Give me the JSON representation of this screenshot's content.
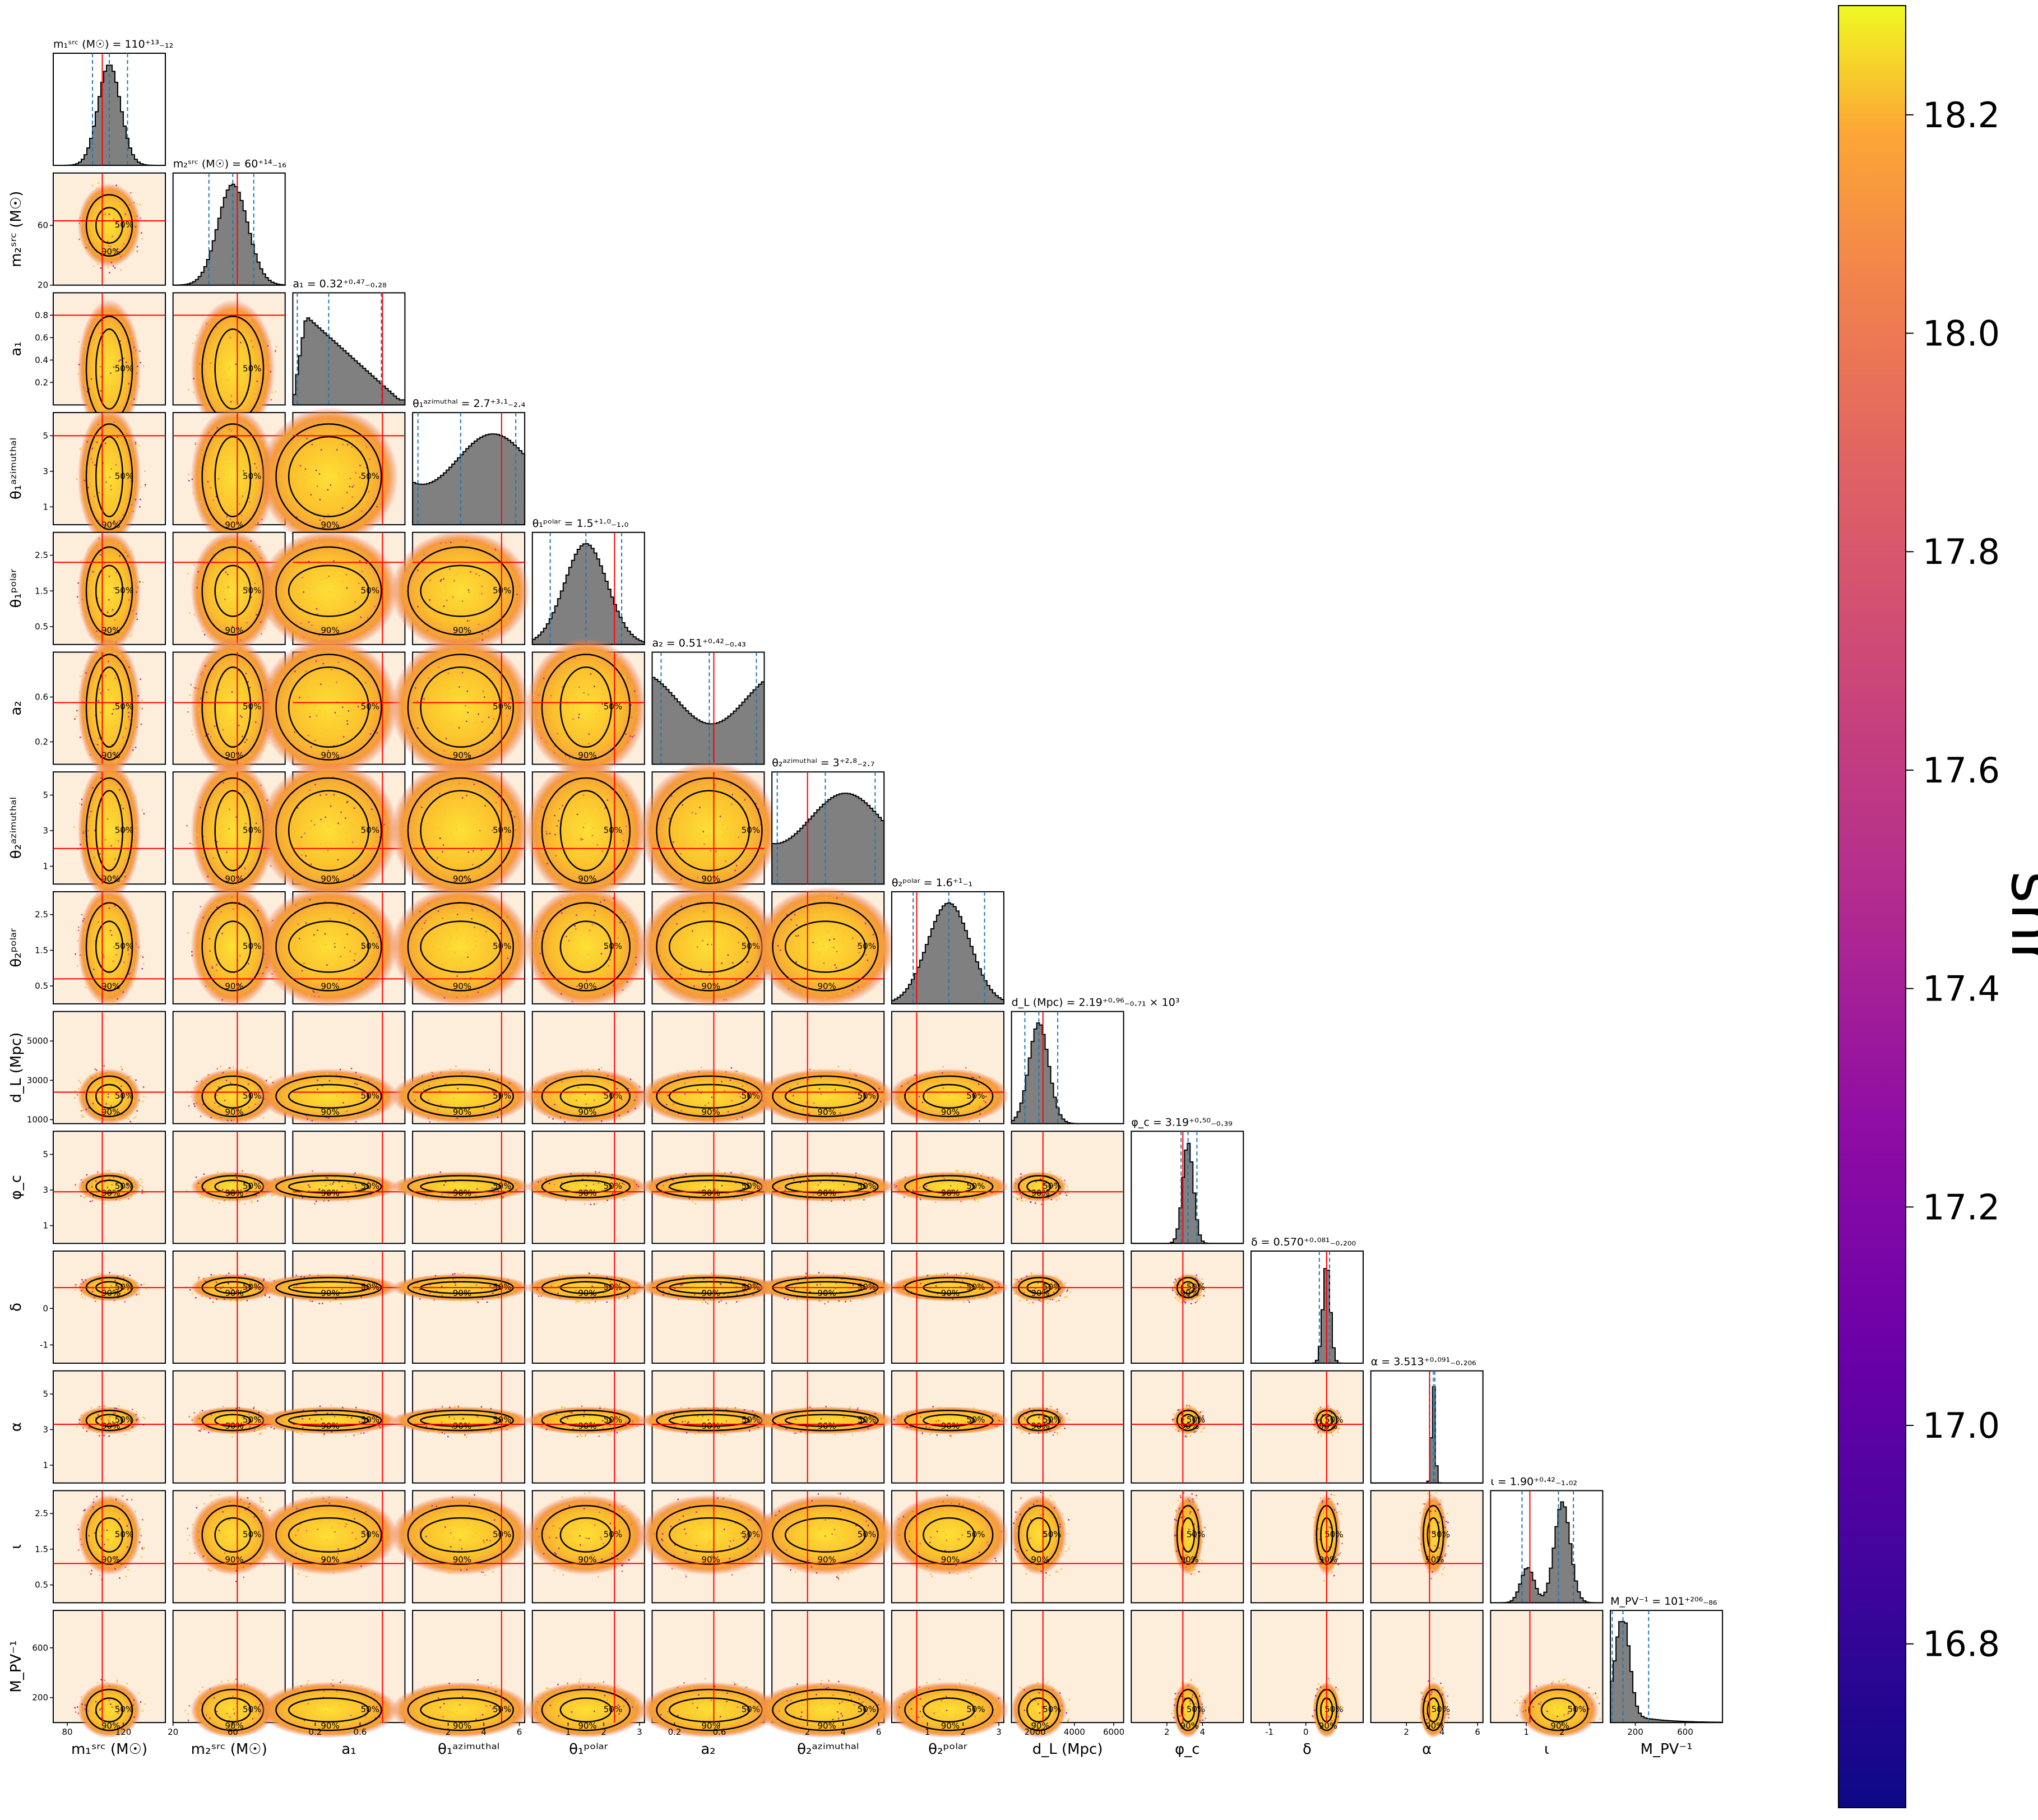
{
  "chart_data": {
    "type": "corner",
    "params": [
      {
        "key": "m1",
        "label": "m₁ˢʳᶜ (M☉)",
        "range": [
          70,
          150
        ],
        "ticks": [
          80,
          120
        ],
        "truth": 105,
        "median": 110,
        "title": "m₁ˢʳᶜ (M☉) = 110⁺¹³₋₁₂",
        "lo": 98,
        "hi": 123,
        "sd": 8
      },
      {
        "key": "m2",
        "label": "m₂ˢʳᶜ (M☉)",
        "range": [
          20,
          95
        ],
        "ticks": [
          20,
          60
        ],
        "truth": 63,
        "median": 60,
        "title": "m₂ˢʳᶜ (M☉) = 60⁺¹⁴₋₁₆",
        "lo": 44,
        "hi": 74,
        "sd": 10
      },
      {
        "key": "a1",
        "label": "a₁",
        "range": [
          0,
          1
        ],
        "ticks": [
          0.2,
          0.4,
          0.6,
          0.8
        ],
        "truth": 0.8,
        "median": 0.32,
        "title": "a₁ = 0.32⁺⁰·⁴⁷₋₀.₂₈",
        "lo": 0.04,
        "hi": 0.79,
        "sd": 0.3
      },
      {
        "key": "t1az",
        "label": "θ₁ᵃᶻⁱᵐᵘᵗʰᵃˡ",
        "range": [
          0,
          6.3
        ],
        "ticks": [
          1,
          3,
          5
        ],
        "truth": 5.0,
        "median": 2.7,
        "title": "θ₁ᵃᶻⁱᵐᵘᵗʰᵃˡ = 2.7⁺³·¹₋₂.₄",
        "lo": 0.3,
        "hi": 5.8,
        "sd": 2
      },
      {
        "key": "t1p",
        "label": "θ₁ᵖᵒˡᵃʳ",
        "range": [
          0,
          3.14
        ],
        "ticks": [
          0.5,
          1.5,
          2.5
        ],
        "truth": 2.3,
        "median": 1.5,
        "title": "θ₁ᵖᵒˡᵃʳ = 1.5⁺¹·⁰₋₁.₀",
        "lo": 0.5,
        "hi": 2.5,
        "sd": 0.6
      },
      {
        "key": "a2",
        "label": "a₂",
        "range": [
          0,
          1
        ],
        "ticks": [
          0.2,
          0.6
        ],
        "truth": 0.55,
        "median": 0.51,
        "title": "a₂ = 0.51⁺⁰·⁴²₋₀.₄₃",
        "lo": 0.08,
        "hi": 0.93,
        "sd": 0.3
      },
      {
        "key": "t2az",
        "label": "θ₂ᵃᶻⁱᵐᵘᵗʰᵃˡ",
        "range": [
          0,
          6.3
        ],
        "ticks": [
          1,
          3,
          5
        ],
        "truth": 2.0,
        "median": 3.0,
        "title": "θ₂ᵃᶻⁱᵐᵘᵗʰᵃˡ = 3⁺²·⁸₋₂.₇",
        "lo": 0.3,
        "hi": 5.8,
        "sd": 2
      },
      {
        "key": "t2p",
        "label": "θ₂ᵖᵒˡᵃʳ",
        "range": [
          0,
          3.14
        ],
        "ticks": [
          0.5,
          1.5,
          2.5
        ],
        "truth": 0.7,
        "median": 1.6,
        "title": "θ₂ᵖᵒˡᵃʳ = 1.6⁺¹₋₁",
        "lo": 0.6,
        "hi": 2.6,
        "sd": 0.6
      },
      {
        "key": "dL",
        "label": "d_L (Mpc)",
        "range": [
          800,
          6500
        ],
        "ticks": [
          1000,
          3000,
          5000
        ],
        "truth": 2400,
        "median": 2190,
        "title": "d_L (Mpc) = 2.19⁺⁰·⁹⁶₋₀.₇₁ × 10³",
        "lo": 1480,
        "hi": 3150,
        "sd": 500
      },
      {
        "key": "phic",
        "label": "φ_c",
        "range": [
          0,
          6.3
        ],
        "ticks": [
          1,
          3,
          5
        ],
        "truth": 2.9,
        "median": 3.19,
        "title": "φ_c = 3.19⁺⁰·⁵⁰₋₀.₃₉",
        "lo": 2.8,
        "hi": 3.69,
        "sd": 0.3
      },
      {
        "key": "delta",
        "label": "δ",
        "range": [
          -1.5,
          1.57
        ],
        "ticks": [
          -1,
          0
        ],
        "truth": 0.57,
        "median": 0.57,
        "title": "δ = 0.570⁺⁰·⁰⁸¹₋₀.₂₀₀",
        "lo": 0.37,
        "hi": 0.65,
        "sd": 0.1
      },
      {
        "key": "alpha",
        "label": "α",
        "range": [
          0,
          6.3
        ],
        "ticks": [
          1,
          3,
          5
        ],
        "truth": 3.3,
        "median": 3.513,
        "title": "α = 3.513⁺⁰·⁰⁹¹₋₀.₂₀₆",
        "lo": 3.31,
        "hi": 3.6,
        "sd": 0.1
      },
      {
        "key": "iota",
        "label": "ι",
        "range": [
          0,
          3.14
        ],
        "ticks": [
          0.5,
          1.5,
          2.5
        ],
        "truth": 1.1,
        "median": 1.9,
        "title": "ι = 1.90⁺⁰·⁴²₋₁.₀₂",
        "lo": 0.88,
        "hi": 2.32,
        "sd": 0.4
      },
      {
        "key": "mpv",
        "label": "M_PV⁻¹",
        "range": [
          0,
          900
        ],
        "ticks": [
          200,
          600
        ],
        "truth": null,
        "median": 101,
        "title": "M_PV⁻¹ = 101⁺²⁰⁶₋₈₆",
        "lo": 15,
        "hi": 307,
        "sd": 80
      }
    ],
    "bottom_ticks": {
      "m1": [
        80,
        120
      ],
      "m2": [
        20,
        60
      ],
      "a1": [
        0.2,
        0.6
      ],
      "t1az": [
        2,
        4,
        6
      ],
      "t1p": [
        1,
        2,
        3
      ],
      "a2": [
        0.2,
        0.6
      ],
      "t2az": [
        2,
        4,
        6
      ],
      "t2p": [
        1,
        2,
        3
      ],
      "dL": [
        2000,
        4000,
        6000
      ],
      "phic": [
        2,
        4
      ],
      "delta": [
        -1,
        0
      ],
      "alpha": [
        2,
        4,
        6
      ],
      "iota": [
        1,
        2
      ],
      "mpv": [
        200,
        600
      ]
    },
    "truth_color": "#ff0000",
    "quantile_color": "#1f77b4",
    "hist_color": "#808080",
    "contour_levels": [
      "50%",
      "90%"
    ],
    "colormap": "plasma",
    "colorbar": {
      "label": "snr",
      "range": [
        16.65,
        18.3
      ],
      "ticks": [
        "16.8",
        "17.0",
        "17.2",
        "17.4",
        "17.6",
        "17.8",
        "18.0",
        "18.2"
      ],
      "tick_values": [
        16.8,
        17.0,
        17.2,
        17.4,
        17.6,
        17.8,
        18.0,
        18.2
      ]
    }
  }
}
